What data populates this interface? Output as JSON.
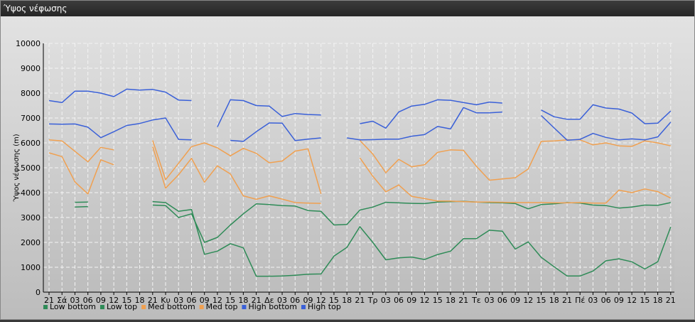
{
  "window": {
    "title": "Ύψος νέφωσης"
  },
  "chart_data": {
    "type": "line",
    "ylabel": "Ύψος νέφωσης (m)",
    "ylim": [
      0,
      10000
    ],
    "yticks": [
      0,
      1000,
      2000,
      3000,
      4000,
      5000,
      6000,
      7000,
      8000,
      9000,
      10000
    ],
    "x_labels": [
      "21",
      "Σά",
      "03",
      "06",
      "09",
      "12",
      "15",
      "18",
      "21",
      "Κυ",
      "03",
      "06",
      "09",
      "12",
      "15",
      "18",
      "21",
      "Δε",
      "03",
      "06",
      "09",
      "12",
      "15",
      "18",
      "21",
      "Τρ",
      "03",
      "06",
      "09",
      "12",
      "15",
      "18",
      "21",
      "Τε",
      "03",
      "06",
      "09",
      "12",
      "15",
      "18",
      "21",
      "Πέ",
      "03",
      "06",
      "09",
      "12",
      "15",
      "18",
      "21"
    ],
    "grid": true,
    "legend_position": "bottom-left",
    "series": [
      {
        "name": "Low bottom",
        "color": "#2e8b57",
        "values": [
          null,
          null,
          3420,
          3440,
          null,
          null,
          null,
          null,
          3500,
          3480,
          3000,
          3150,
          2000,
          2200,
          2700,
          3150,
          3550,
          3520,
          3480,
          3460,
          3280,
          3250,
          2700,
          2720,
          3300,
          3420,
          3610,
          3590,
          3570,
          3560,
          3620,
          3640,
          3650,
          3620,
          3600,
          3590,
          3560,
          3350,
          3520,
          3550,
          3600,
          3580,
          3500,
          3480,
          3380,
          3420,
          3500,
          3490,
          3600
        ]
      },
      {
        "name": "Low top",
        "color": "#2e8b57",
        "values": [
          null,
          null,
          3610,
          3620,
          null,
          null,
          null,
          null,
          3640,
          3600,
          3250,
          3320,
          1520,
          1650,
          1950,
          1780,
          640,
          640,
          650,
          680,
          720,
          730,
          1450,
          1800,
          2630,
          2000,
          1300,
          1380,
          1410,
          1310,
          1510,
          1650,
          2150,
          2150,
          2490,
          2450,
          1730,
          2020,
          1400,
          1020,
          650,
          650,
          850,
          1260,
          1340,
          1220,
          930,
          1220,
          2620
        ]
      },
      {
        "name": "Med bottom",
        "color": "#f0a050",
        "values": [
          5600,
          5450,
          4430,
          3950,
          5320,
          5120,
          null,
          null,
          5850,
          4180,
          4720,
          5380,
          4420,
          5080,
          4750,
          3870,
          3730,
          3870,
          3740,
          3600,
          3580,
          3570,
          null,
          null,
          5400,
          4660,
          4030,
          4310,
          3850,
          3760,
          3660,
          3660,
          3640,
          3620,
          3620,
          3610,
          3600,
          3600,
          3600,
          3590,
          3590,
          3600,
          3580,
          3580,
          4100,
          4000,
          4150,
          4040,
          3780
        ]
      },
      {
        "name": "Med top",
        "color": "#f0a050",
        "values": [
          6120,
          6080,
          5660,
          5240,
          5820,
          5720,
          null,
          null,
          6100,
          4520,
          5180,
          5850,
          6000,
          5800,
          5480,
          5780,
          5580,
          5200,
          5270,
          5670,
          5760,
          3950,
          null,
          null,
          6100,
          5550,
          4800,
          5340,
          5040,
          5120,
          5620,
          5720,
          5700,
          5060,
          4500,
          4550,
          4600,
          4950,
          6060,
          6080,
          6120,
          6120,
          5920,
          6000,
          5880,
          5860,
          6080,
          6000,
          5880
        ]
      },
      {
        "name": "High bottom",
        "color": "#3a60d8",
        "values": [
          6760,
          6750,
          6760,
          6630,
          6210,
          6450,
          6700,
          6780,
          6920,
          7000,
          6140,
          6120,
          null,
          null,
          6100,
          6060,
          6450,
          6800,
          6790,
          6090,
          6150,
          6200,
          null,
          6200,
          6120,
          6130,
          6150,
          6150,
          6270,
          6330,
          6660,
          6560,
          7420,
          7210,
          7210,
          7240,
          null,
          null,
          7100,
          6600,
          6110,
          6140,
          6380,
          6220,
          6120,
          6160,
          6120,
          6240,
          6830
        ]
      },
      {
        "name": "High top",
        "color": "#3a60d8",
        "values": [
          7700,
          7620,
          8080,
          8080,
          8000,
          7860,
          8160,
          8120,
          8150,
          8040,
          7720,
          7700,
          null,
          6640,
          7730,
          7700,
          7500,
          7480,
          7060,
          7180,
          7140,
          7120,
          null,
          null,
          6770,
          6870,
          6590,
          7240,
          7480,
          7550,
          7730,
          7710,
          7620,
          7530,
          7640,
          7600,
          null,
          null,
          7320,
          7050,
          6950,
          6950,
          7530,
          7400,
          7360,
          7200,
          6770,
          6790,
          7280
        ]
      }
    ]
  }
}
